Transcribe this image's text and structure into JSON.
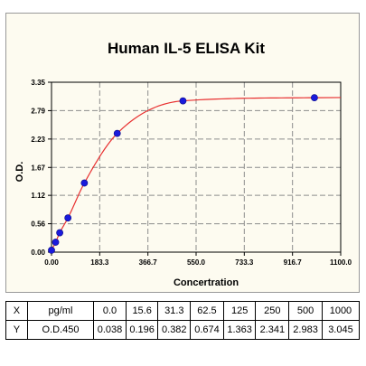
{
  "chart_data": {
    "type": "scatter",
    "title": "Human IL-5 ELISA Kit",
    "xlabel": "Concertration",
    "ylabel": "O.D.",
    "xlim": [
      0,
      1100
    ],
    "ylim": [
      0,
      3.35
    ],
    "x_ticks": [
      "0.00",
      "183.3",
      "366.7",
      "550.0",
      "733.3",
      "916.7",
      "1100.0"
    ],
    "x_tick_values": [
      0,
      183.3,
      366.7,
      550,
      733.3,
      916.7,
      1100
    ],
    "y_ticks": [
      "0.00",
      "0.56",
      "1.12",
      "1.67",
      "2.23",
      "2.79",
      "3.35"
    ],
    "y_tick_values": [
      0,
      0.56,
      1.12,
      1.67,
      2.23,
      2.79,
      3.35
    ],
    "grid": true,
    "point_color": "#1a1adc",
    "curve_color": "#e83030",
    "x": [
      0,
      15.6,
      31.3,
      62.5,
      125,
      250,
      500,
      1000
    ],
    "y": [
      0.038,
      0.196,
      0.382,
      0.674,
      1.363,
      2.341,
      2.983,
      3.045
    ]
  },
  "table": {
    "rows": [
      [
        "X",
        "pg/ml",
        "0.0",
        "15.6",
        "31.3",
        "62.5",
        "125",
        "250",
        "500",
        "1000"
      ],
      [
        "Y",
        "O.D.450",
        "0.038",
        "0.196",
        "0.382",
        "0.674",
        "1.363",
        "2.341",
        "2.983",
        "3.045"
      ]
    ]
  }
}
